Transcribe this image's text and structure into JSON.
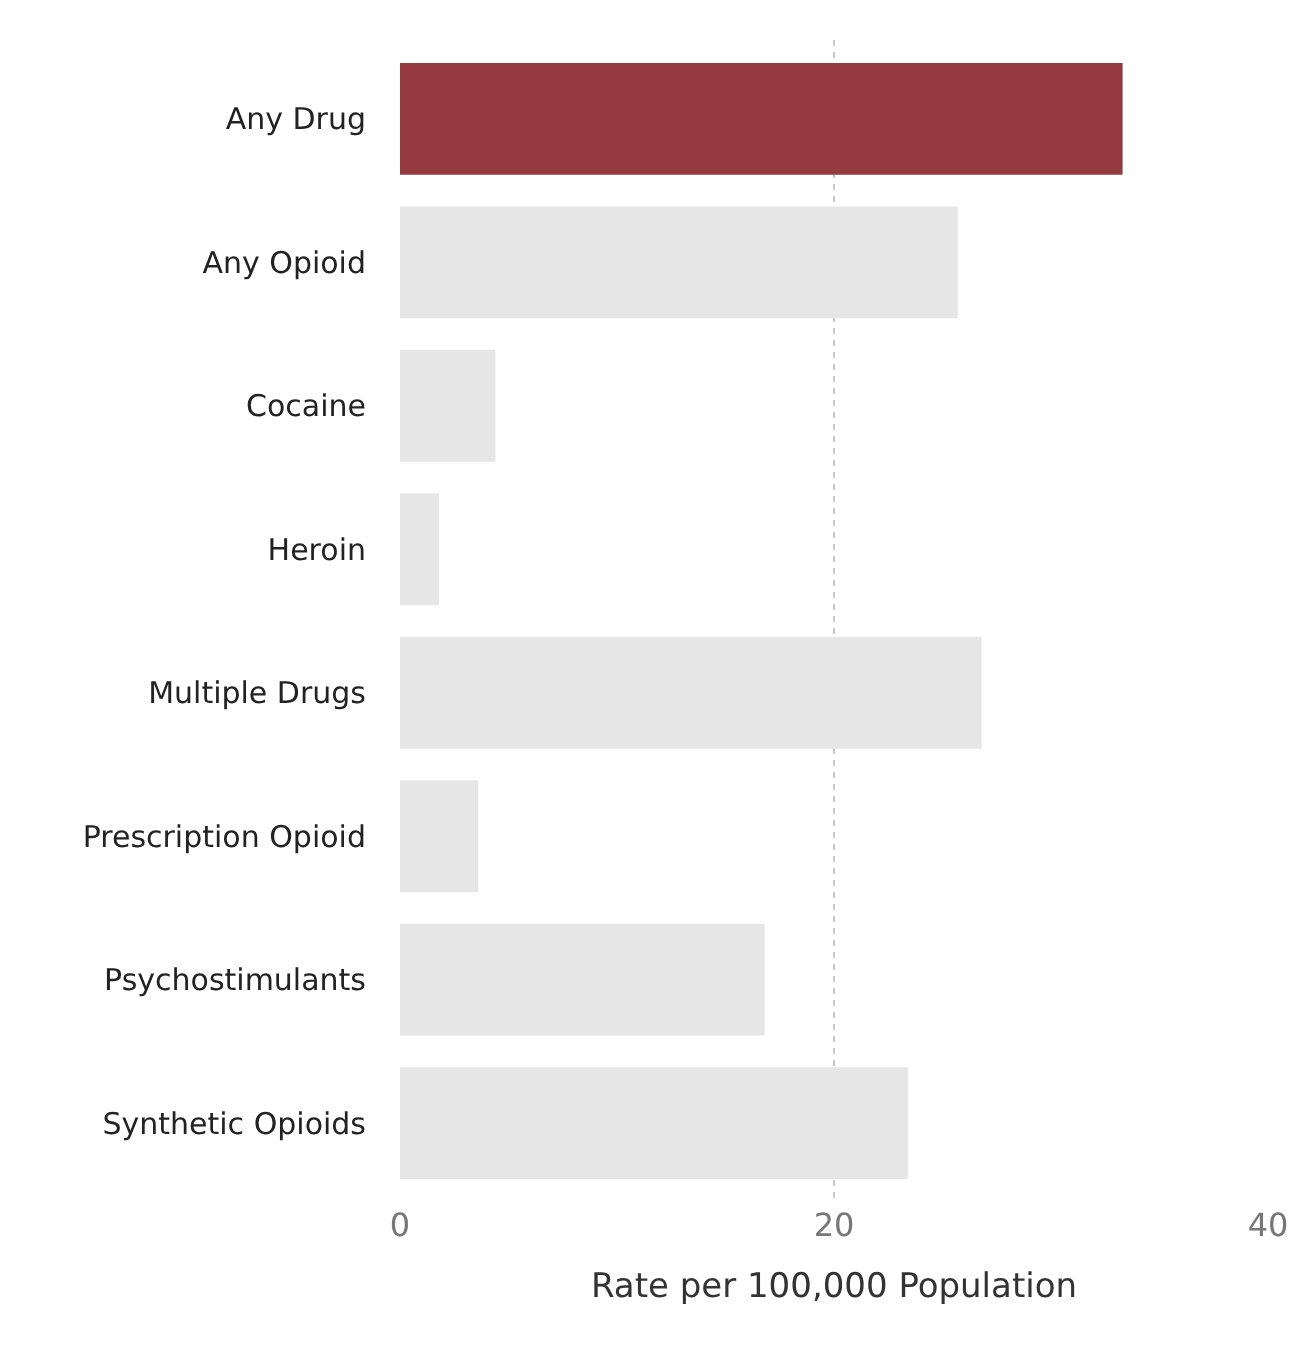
{
  "chart_data": {
    "type": "bar",
    "orientation": "horizontal",
    "xlabel": "Rate per 100,000 Population",
    "categories": [
      "Any Drug",
      "Any Opioid",
      "Cocaine",
      "Heroin",
      "Multiple Drugs",
      "Prescription Opioid",
      "Psychostimulants",
      "Synthetic Opioids"
    ],
    "values": [
      33.3,
      25.7,
      4.4,
      1.8,
      26.8,
      3.6,
      16.8,
      23.4
    ],
    "colors": [
      "#953b3f",
      "#e6e6e6",
      "#e6e6e6",
      "#e6e6e6",
      "#e6e6e6",
      "#e6e6e6",
      "#e6e6e6",
      "#e6e6e6"
    ],
    "xlim": [
      0,
      40
    ],
    "xticks": [
      0,
      20,
      40
    ],
    "grid": "x"
  }
}
